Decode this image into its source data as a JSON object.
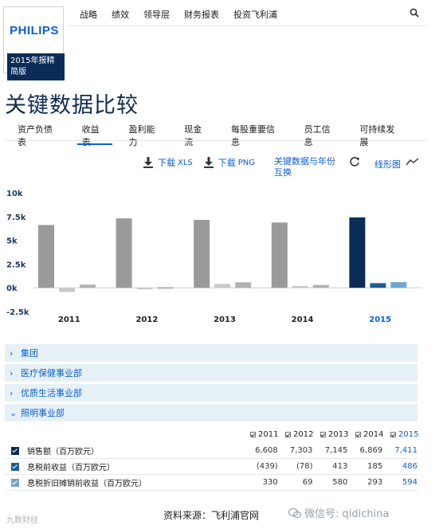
{
  "brand": {
    "logo": "PHILIPS",
    "report_label": "2015年报精简版"
  },
  "topnav": [
    "战略",
    "绩效",
    "领导层",
    "财务报表",
    "投资飞利浦"
  ],
  "page_title": "关键数据比较",
  "tabs": [
    "资产负债表",
    "收益表",
    "盈利能力",
    "现金流",
    "每股重要信息",
    "员工信息",
    "可持续发展"
  ],
  "active_tab": "收益表",
  "toolbar": {
    "download_xls": "下载",
    "xls_ext": "XLS",
    "download_png": "下载",
    "png_ext": "PNG",
    "swap_label": "关键数据与年份互换",
    "line_chart": "线形图"
  },
  "icons": [
    "search-icon",
    "download-icon",
    "refresh-icon",
    "line-chart-icon",
    "chevron-right-icon",
    "chevron-down-icon",
    "checkbox-icon",
    "wechat-icon"
  ],
  "colors": {
    "accent": "#0b5ed7",
    "navy": "#0a2c56",
    "bar_grey": "#9a9a9c",
    "accordion_bg": "#e6f1f7"
  },
  "chart_data": {
    "type": "bar",
    "categories": [
      "2011",
      "2012",
      "2013",
      "2014",
      "2015"
    ],
    "yticks": [
      "10k",
      "7.5k",
      "5k",
      "2.5k",
      "0k",
      "-2.5k"
    ],
    "ylim": [
      -2500,
      10000
    ],
    "series": [
      {
        "name": "销售额（百万欧元）",
        "values": [
          6608,
          7303,
          7145,
          6869,
          7411
        ]
      },
      {
        "name": "息税前收益（百万欧元）",
        "values": [
          -439,
          -78,
          413,
          185,
          486
        ]
      },
      {
        "name": "息税折旧摊销前收益（百万欧元）",
        "values": [
          330,
          69,
          580,
          293,
          594
        ]
      }
    ],
    "highlight_year": "2015"
  },
  "accordion": [
    {
      "label": "集团",
      "open": false
    },
    {
      "label": "医疗保健事业部",
      "open": false
    },
    {
      "label": "优质生活事业部",
      "open": false
    },
    {
      "label": "照明事业部",
      "open": true
    }
  ],
  "table": {
    "years": [
      "2011",
      "2012",
      "2013",
      "2014",
      "2015"
    ],
    "rows": [
      {
        "label": "销售额（百万欧元）",
        "values": [
          "6,608",
          "7,303",
          "7,145",
          "6,869",
          "7,411"
        ]
      },
      {
        "label": "息税前收益（百万欧元）",
        "values": [
          "(439)",
          "(78)",
          "413",
          "185",
          "486"
        ]
      },
      {
        "label": "息税折旧摊销前收益（百万欧元）",
        "values": [
          "330",
          "69",
          "580",
          "293",
          "594"
        ]
      }
    ]
  },
  "source": "资料来源：飞利浦官网",
  "wechat": "微信号: qidichina",
  "watermark": "九数财经"
}
